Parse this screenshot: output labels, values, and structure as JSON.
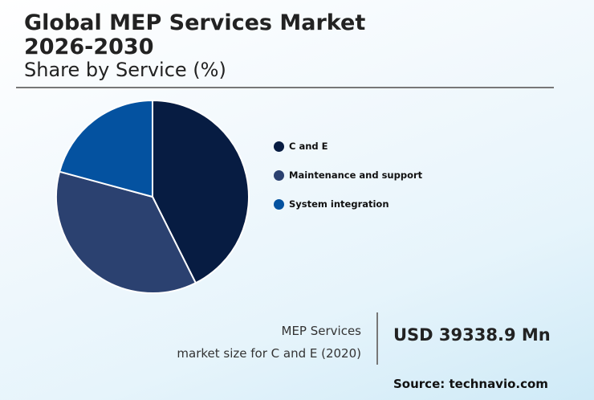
{
  "header": {
    "title_line1": "Global MEP Services Market",
    "title_line2": "2026-2030",
    "subtitle": "Share by Service (%)"
  },
  "chart_data": {
    "type": "pie",
    "title": "Global MEP Services Market 2026-2030",
    "subtitle": "Share by Service (%)",
    "categories": [
      "C and E",
      "Maintenance and support",
      "System integration"
    ],
    "values": [
      42.6,
      36.6,
      20.8
    ],
    "colors": [
      "#071c42",
      "#2b4170",
      "#0452a0"
    ],
    "legend_position": "right",
    "start_angle_deg": 0,
    "direction": "clockwise"
  },
  "legend": {
    "items": [
      {
        "label": "C and E",
        "color": "#071c42"
      },
      {
        "label": "Maintenance and support",
        "color": "#2b4170"
      },
      {
        "label": "System integration",
        "color": "#0452a0"
      }
    ]
  },
  "stat": {
    "line1": "MEP Services",
    "line2": "market size for C and E (2020)",
    "value": "USD 39338.9 Mn"
  },
  "footer": {
    "source": "Source: technavio.com"
  }
}
